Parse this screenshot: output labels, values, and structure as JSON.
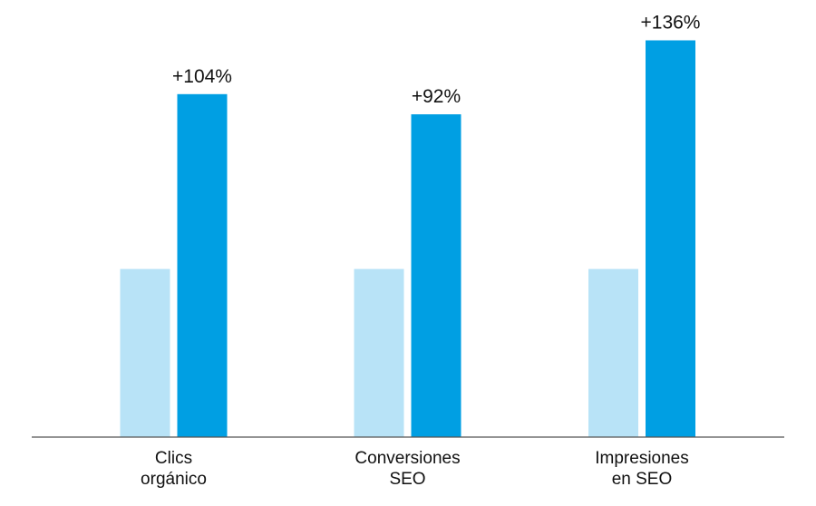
{
  "chart_data": {
    "type": "bar",
    "categories": [
      [
        "Clics",
        "orgánico"
      ],
      [
        "Conversiones",
        "SEO"
      ],
      [
        "Impresiones",
        "en SEO"
      ]
    ],
    "series": [
      {
        "values": [
          100,
          100,
          100
        ],
        "color": "#b8e3f7"
      },
      {
        "values": [
          204,
          192,
          236
        ],
        "color": "#009fe3"
      }
    ],
    "data_labels": [
      "+104%",
      "+92%",
      "+136%"
    ],
    "ylim": [
      0,
      260
    ],
    "grid": false,
    "legend": "none",
    "axis_color": "#555555"
  }
}
